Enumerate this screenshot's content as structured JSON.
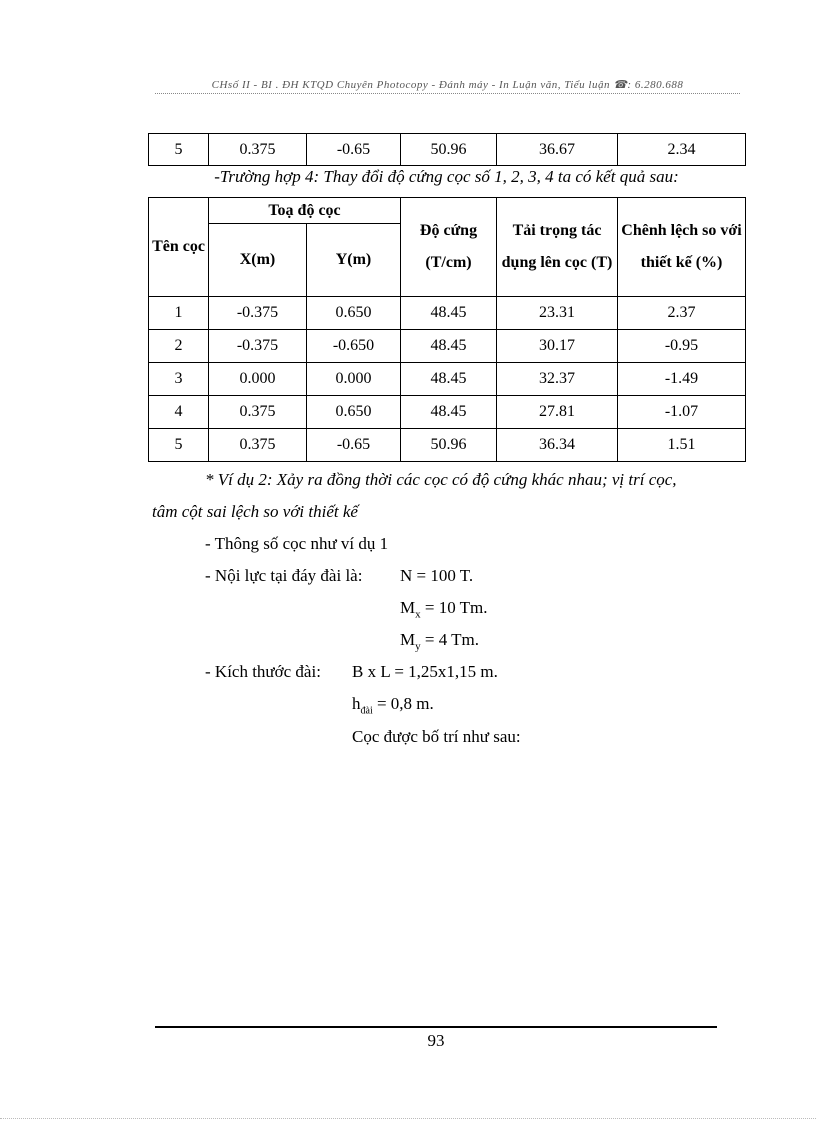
{
  "header": "CHsố II - BI . ĐH KTQD Chuyên Photocopy - Đánh máy - In Luận văn, Tiểu luận ☎: 6.280.688",
  "table1": {
    "rows": [
      [
        "5",
        "0.375",
        "-0.65",
        "50.96",
        "36.67",
        "2.34"
      ]
    ]
  },
  "caption": "-Trường hợp 4: Thay đổi  độ cứng cọc số  1, 2, 3, 4 ta có kết quả  sau:",
  "table2": {
    "headers": {
      "ten": "Tên cọc",
      "toado": "Toạ độ cọc",
      "x": "X(m)",
      "y": "Y(m)",
      "docung": "Độ cứng (T/cm)",
      "taitrong": "Tải trọng tác dụng lên cọc (T)",
      "chenhlech": "Chênh lệch so với thiết kế (%)"
    },
    "rows": [
      [
        "1",
        "-0.375",
        "0.650",
        "48.45",
        "23.31",
        "2.37"
      ],
      [
        "2",
        "-0.375",
        "-0.650",
        "48.45",
        "30.17",
        "-0.95"
      ],
      [
        "3",
        "0.000",
        "0.000",
        "48.45",
        "32.37",
        "-1.49"
      ],
      [
        "4",
        "0.375",
        "0.650",
        "48.45",
        "27.81",
        "-1.07"
      ],
      [
        "5",
        "0.375",
        "-0.65",
        "50.96",
        "36.34",
        "1.51"
      ]
    ]
  },
  "body": {
    "vidu1": "* Ví dụ 2: Xảy ra đồng thời các cọc có độ cứng khác nhau; vị trí cọc,",
    "vidu2": "tâm cột sai lệch so với thiết kế",
    "l1": "- Thông số cọc như ví dụ 1",
    "l2": "- Nội lực tại đáy đài là:",
    "n": "N = 100 T.",
    "mx_m": "M",
    "mx_s": "x",
    "mx_v": " = 10 Tm.",
    "my_m": "M",
    "my_s": "y",
    "my_v": " = 4 Tm.",
    "l3": "- Kích thước đài:",
    "bl": "B x L = 1,25x1,15  m.",
    "h_m": "h",
    "h_s": "đài",
    "h_v": " = 0,8 m.",
    "l4": "Cọc được bố trí như sau:"
  },
  "page_number": "93"
}
